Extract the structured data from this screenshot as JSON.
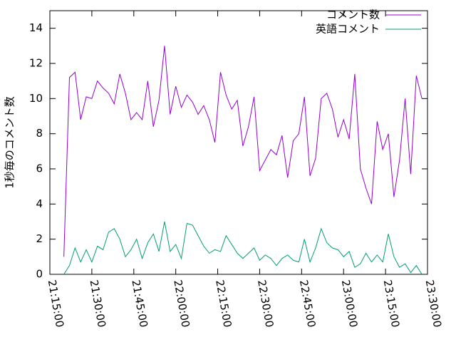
{
  "chart_data": {
    "type": "line",
    "ylabel": "1秒毎のコメント数",
    "x": [
      "21:20:00",
      "21:22:00",
      "21:24:00",
      "21:26:00",
      "21:28:00",
      "21:30:00",
      "21:32:00",
      "21:34:00",
      "21:36:00",
      "21:38:00",
      "21:40:00",
      "21:42:00",
      "21:44:00",
      "21:46:00",
      "21:48:00",
      "21:50:00",
      "21:52:00",
      "21:54:00",
      "21:56:00",
      "21:58:00",
      "22:00:00",
      "22:02:00",
      "22:04:00",
      "22:06:00",
      "22:08:00",
      "22:10:00",
      "22:12:00",
      "22:14:00",
      "22:16:00",
      "22:18:00",
      "22:20:00",
      "22:22:00",
      "22:24:00",
      "22:26:00",
      "22:28:00",
      "22:30:00",
      "22:32:00",
      "22:34:00",
      "22:36:00",
      "22:38:00",
      "22:40:00",
      "22:42:00",
      "22:44:00",
      "22:46:00",
      "22:48:00",
      "22:50:00",
      "22:52:00",
      "22:54:00",
      "22:56:00",
      "22:58:00",
      "23:00:00",
      "23:02:00",
      "23:04:00",
      "23:06:00",
      "23:08:00",
      "23:10:00",
      "23:12:00",
      "23:14:00",
      "23:16:00",
      "23:18:00",
      "23:20:00",
      "23:22:00",
      "23:24:00",
      "23:26:00",
      "23:28:00"
    ],
    "series": [
      {
        "name": "コメント数",
        "color": "#9400d3",
        "values": [
          1.0,
          11.2,
          11.5,
          8.8,
          10.1,
          10.0,
          11.0,
          10.6,
          10.3,
          9.7,
          11.4,
          10.3,
          8.8,
          9.2,
          8.8,
          11.0,
          8.4,
          9.9,
          13.0,
          9.1,
          10.7,
          9.5,
          10.2,
          9.8,
          9.1,
          9.6,
          8.8,
          7.5,
          11.5,
          10.2,
          9.4,
          9.9,
          7.3,
          8.4,
          10.1,
          5.9,
          6.5,
          7.1,
          6.8,
          7.9,
          5.5,
          7.6,
          8.0,
          10.1,
          5.6,
          6.6,
          10.0,
          10.3,
          9.4,
          7.8,
          8.8,
          7.7,
          11.4,
          6.0,
          4.9,
          4.0,
          8.7,
          7.1,
          8.0,
          4.4,
          6.5,
          10.0,
          5.7,
          11.3,
          10.0
        ]
      },
      {
        "name": "英語コメント",
        "color": "#009e73",
        "values": [
          0.0,
          0.5,
          1.5,
          0.7,
          1.4,
          0.7,
          1.6,
          1.4,
          2.4,
          2.6,
          2.0,
          1.0,
          1.4,
          2.0,
          0.9,
          1.8,
          2.3,
          1.3,
          3.0,
          1.3,
          1.7,
          0.9,
          2.9,
          2.8,
          2.2,
          1.6,
          1.2,
          1.4,
          1.3,
          2.2,
          1.7,
          1.2,
          0.9,
          1.2,
          1.5,
          0.8,
          1.1,
          0.9,
          0.5,
          0.9,
          1.1,
          0.8,
          0.7,
          2.0,
          0.7,
          1.5,
          2.6,
          1.8,
          1.5,
          1.4,
          1.0,
          1.3,
          0.4,
          0.6,
          1.2,
          0.7,
          1.1,
          0.7,
          2.3,
          1.0,
          0.4,
          0.6,
          0.1,
          0.5,
          0.0
        ]
      }
    ],
    "xlim": [
      "21:15:00",
      "23:30:00"
    ],
    "xticks": [
      "21:15:00",
      "21:30:00",
      "21:45:00",
      "22:00:00",
      "22:15:00",
      "22:30:00",
      "22:45:00",
      "23:00:00",
      "23:15:00",
      "23:30:00"
    ],
    "ylim": [
      0,
      15
    ],
    "yticks": [
      0,
      2,
      4,
      6,
      8,
      10,
      12,
      14
    ],
    "legend": "upper right"
  }
}
